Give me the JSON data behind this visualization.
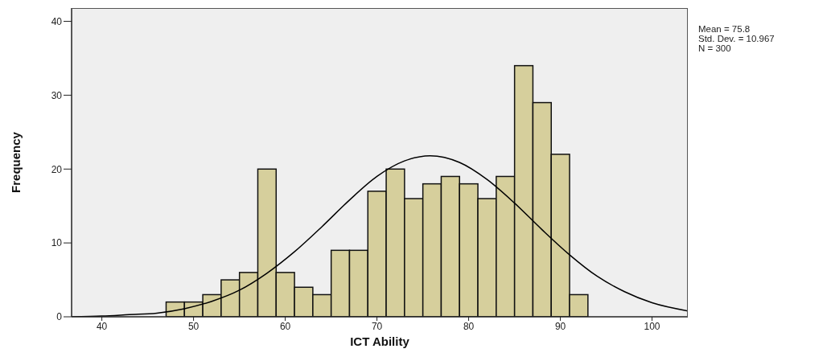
{
  "chart_data": {
    "type": "histogram",
    "xlabel": "ICT Ability",
    "ylabel": "Frequency",
    "bins": [
      47,
      49,
      51,
      53,
      55,
      57,
      59,
      61,
      63,
      65,
      67,
      69,
      71,
      73,
      75,
      77,
      79,
      81,
      83,
      85,
      87,
      89,
      91,
      93
    ],
    "values": [
      2,
      2,
      3,
      5,
      6,
      20,
      6,
      4,
      3,
      9,
      9,
      17,
      20,
      16,
      18,
      19,
      18,
      16,
      19,
      34,
      29,
      22,
      3
    ],
    "color": "#d6cf9c",
    "series": [
      {
        "type": "line",
        "color": "#000000",
        "x": [
          36.7,
          40,
          43,
          46,
          49,
          52,
          55,
          58,
          61,
          64,
          67,
          70,
          73,
          75.8,
          79,
          82,
          85,
          88,
          91,
          94,
          97,
          100,
          103.9
        ],
        "values": [
          0,
          0.1,
          0.3,
          0.5,
          1.1,
          2.1,
          3.6,
          5.9,
          8.8,
          12.2,
          15.8,
          19.0,
          21.1,
          21.8,
          20.9,
          18.6,
          15.4,
          11.8,
          8.4,
          5.5,
          3.4,
          1.9,
          0.8
        ]
      }
    ],
    "marker": "none",
    "xlim": [
      36.7,
      103.9
    ],
    "xticks": [
      40,
      50,
      60,
      70,
      80,
      90,
      100
    ],
    "ylim": [
      0,
      41.8
    ],
    "yticks": [
      0,
      10,
      20,
      30,
      40
    ],
    "annotations": [
      "Mean = 75.8",
      "Std. Dev. = 10.967",
      "N = 300"
    ]
  }
}
